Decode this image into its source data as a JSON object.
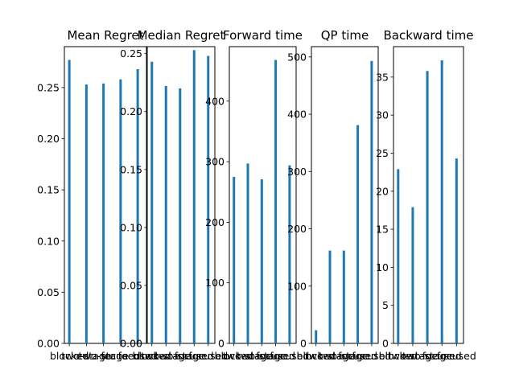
{
  "chart_data": [
    {
      "type": "bar",
      "title": "Mean Regret",
      "categories": [
        "blocked",
        "two-stage",
        "two-stage",
        "focused",
        "focused"
      ],
      "values": [
        0.277,
        0.253,
        0.254,
        0.258,
        0.268
      ],
      "ylim": [
        0,
        0.29
      ],
      "yticks": [
        0.0,
        0.05,
        0.1,
        0.15,
        0.2,
        0.25
      ],
      "ytick_labels": [
        "0.00",
        "0.05",
        "0.10",
        "0.15",
        "0.20",
        "0.25"
      ],
      "color": "#1f77b4"
    },
    {
      "type": "bar",
      "title": "Median Regret",
      "categories": [
        "blocked",
        "two-stage",
        "two-stage",
        "focused",
        "focused"
      ],
      "values": [
        0.243,
        0.222,
        0.22,
        0.253,
        0.248
      ],
      "ylim": [
        0,
        0.256
      ],
      "yticks": [
        0.0,
        0.05,
        0.1,
        0.15,
        0.2,
        0.25
      ],
      "ytick_labels": [
        "0.00",
        "0.05",
        "0.10",
        "0.15",
        "0.20",
        "0.25"
      ],
      "color": "#1f77b4"
    },
    {
      "type": "bar",
      "title": "Forward time",
      "categories": [
        "blocked",
        "two-stage",
        "two-stage",
        "focused",
        "focused"
      ],
      "values": [
        275,
        297,
        271,
        468,
        294
      ],
      "ylim": [
        0,
        490
      ],
      "yticks": [
        0,
        100,
        200,
        300,
        400
      ],
      "ytick_labels": [
        "0",
        "100",
        "200",
        "300",
        "400"
      ],
      "color": "#1f77b4"
    },
    {
      "type": "bar",
      "title": "QP time",
      "categories": [
        "blocked",
        "two-stage",
        "two-stage",
        "focused",
        "focused"
      ],
      "values": [
        23,
        162,
        162,
        381,
        493
      ],
      "ylim": [
        0,
        518
      ],
      "yticks": [
        0,
        100,
        200,
        300,
        400,
        500
      ],
      "ytick_labels": [
        "0",
        "100",
        "200",
        "300",
        "400",
        "500"
      ],
      "color": "#1f77b4"
    },
    {
      "type": "bar",
      "title": "Backward time",
      "categories": [
        "blocked",
        "two-stage",
        "two-stage",
        "focused",
        "focused"
      ],
      "values": [
        22.9,
        17.9,
        35.8,
        37.2,
        24.3
      ],
      "ylim": [
        0,
        39
      ],
      "yticks": [
        0,
        5,
        10,
        15,
        20,
        25,
        30,
        35
      ],
      "ytick_labels": [
        "0",
        "5",
        "10",
        "15",
        "20",
        "25",
        "30",
        "35"
      ],
      "color": "#1f77b4"
    }
  ]
}
